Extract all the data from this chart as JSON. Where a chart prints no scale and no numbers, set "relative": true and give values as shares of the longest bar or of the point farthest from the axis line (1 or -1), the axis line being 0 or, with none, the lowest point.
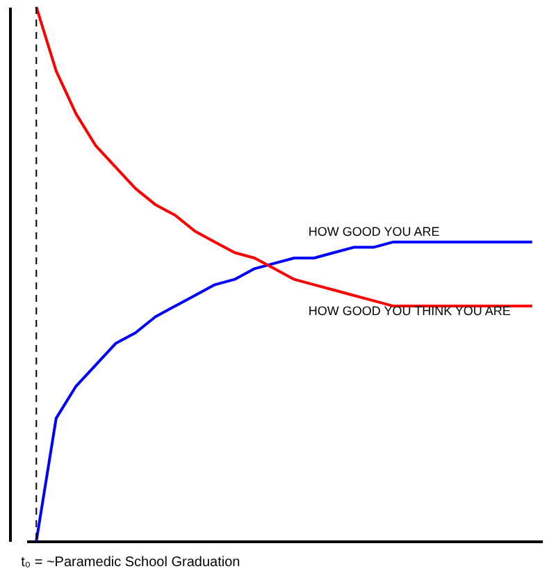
{
  "chart_data": {
    "type": "line",
    "relative": true,
    "categories": [
      null,
      null,
      null,
      null,
      null,
      null,
      null,
      null,
      null,
      null,
      null,
      null,
      null,
      null,
      null,
      null,
      null,
      null,
      null,
      null,
      null,
      null,
      null,
      null,
      null,
      null
    ],
    "series": [
      {
        "name": "HOW GOOD YOU ARE",
        "color": "#0000ff",
        "values": [
          0,
          0.23,
          0.29,
          0.33,
          0.37,
          0.39,
          0.42,
          0.44,
          0.46,
          0.48,
          0.49,
          0.51,
          0.52,
          0.53,
          0.53,
          0.54,
          0.55,
          0.55,
          0.56,
          0.56,
          0.56,
          0.56,
          0.56,
          0.56,
          0.56,
          0.56
        ]
      },
      {
        "name": "HOW GOOD YOU THINK YOU ARE",
        "color": "#ff0000",
        "values": [
          1,
          0.88,
          0.8,
          0.74,
          0.7,
          0.66,
          0.63,
          0.61,
          0.58,
          0.56,
          0.54,
          0.53,
          0.51,
          0.49,
          0.48,
          0.47,
          0.46,
          0.45,
          0.44,
          0.44,
          0.44,
          0.44,
          0.44,
          0.44,
          0.44,
          0.44
        ]
      }
    ],
    "annotations": [
      "t₀ = ~Paramedic School Graduation"
    ],
    "grid": false,
    "marker": "none",
    "line_style": "solid"
  }
}
